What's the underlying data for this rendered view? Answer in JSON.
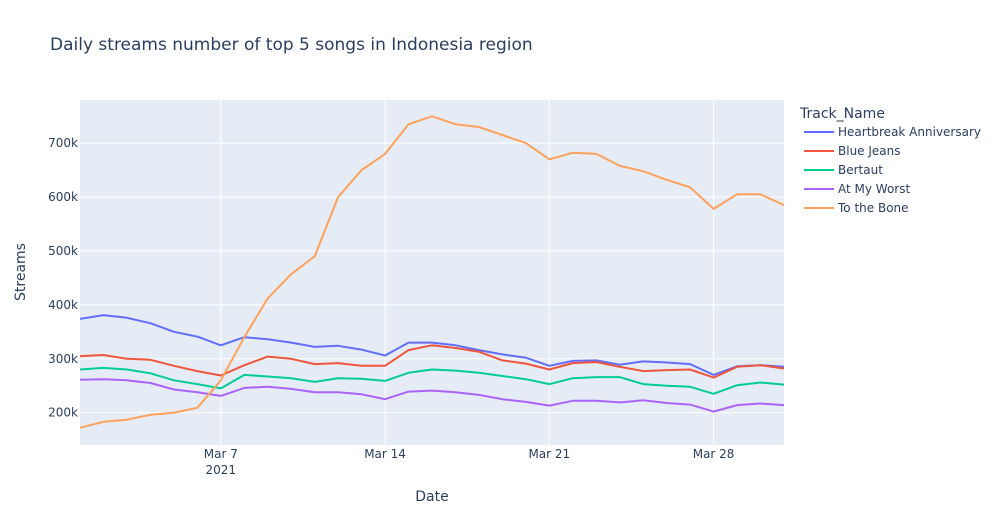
{
  "chart_data": {
    "type": "line",
    "title": "Daily streams number of top 5 songs in Indonesia region",
    "xlabel": "Date",
    "ylabel": "Streams",
    "legend_title": "Track_Name",
    "legend_position": "top-right",
    "grid": true,
    "x_start": "2021-03-01",
    "x_end": "2021-03-31",
    "x_ticks": [
      {
        "date": "2021-03-07",
        "label": "Mar 7",
        "sublabel": "2021"
      },
      {
        "date": "2021-03-14",
        "label": "Mar 14",
        "sublabel": ""
      },
      {
        "date": "2021-03-21",
        "label": "Mar 21",
        "sublabel": ""
      },
      {
        "date": "2021-03-28",
        "label": "Mar 28",
        "sublabel": ""
      }
    ],
    "ylim": [
      140000,
      780000
    ],
    "y_ticks": [
      {
        "value": 200000,
        "label": "200k"
      },
      {
        "value": 300000,
        "label": "300k"
      },
      {
        "value": 400000,
        "label": "400k"
      },
      {
        "value": 500000,
        "label": "500k"
      },
      {
        "value": 600000,
        "label": "600k"
      },
      {
        "value": 700000,
        "label": "700k"
      }
    ],
    "x": [
      "2021-03-01",
      "2021-03-02",
      "2021-03-03",
      "2021-03-04",
      "2021-03-05",
      "2021-03-06",
      "2021-03-07",
      "2021-03-08",
      "2021-03-09",
      "2021-03-10",
      "2021-03-11",
      "2021-03-12",
      "2021-03-13",
      "2021-03-14",
      "2021-03-15",
      "2021-03-16",
      "2021-03-17",
      "2021-03-18",
      "2021-03-19",
      "2021-03-20",
      "2021-03-21",
      "2021-03-22",
      "2021-03-23",
      "2021-03-24",
      "2021-03-25",
      "2021-03-26",
      "2021-03-27",
      "2021-03-28",
      "2021-03-29",
      "2021-03-30",
      "2021-03-31"
    ],
    "series": [
      {
        "name": "Heartbreak Anniversary",
        "color": "#636efa",
        "values": [
          374000,
          381000,
          376000,
          366000,
          350000,
          341000,
          325000,
          340000,
          336000,
          330000,
          322000,
          324000,
          317000,
          306000,
          330000,
          330000,
          325000,
          316000,
          308000,
          302000,
          287000,
          296000,
          297000,
          289000,
          295000,
          293000,
          290000,
          270000,
          286000,
          288000,
          285000
        ]
      },
      {
        "name": "Blue Jeans",
        "color": "#ef553b",
        "values": [
          305000,
          307000,
          300000,
          298000,
          287000,
          277000,
          269000,
          288000,
          304000,
          300000,
          290000,
          292000,
          287000,
          287000,
          316000,
          325000,
          320000,
          313000,
          297000,
          291000,
          280000,
          292000,
          294000,
          285000,
          277000,
          279000,
          280000,
          265000,
          285000,
          288000,
          282000
        ]
      },
      {
        "name": "Bertaut",
        "color": "#00cc96",
        "values": [
          280000,
          283000,
          280000,
          273000,
          260000,
          253000,
          245000,
          270000,
          267000,
          264000,
          257000,
          264000,
          263000,
          259000,
          274000,
          280000,
          278000,
          274000,
          268000,
          262000,
          253000,
          264000,
          266000,
          266000,
          253000,
          250000,
          248000,
          235000,
          251000,
          256000,
          252000
        ]
      },
      {
        "name": "At My Worst",
        "color": "#ab63fa",
        "values": [
          261000,
          262000,
          260000,
          255000,
          243000,
          238000,
          231000,
          246000,
          248000,
          244000,
          238000,
          238000,
          234000,
          225000,
          239000,
          241000,
          238000,
          233000,
          225000,
          220000,
          213000,
          222000,
          222000,
          219000,
          223000,
          218000,
          215000,
          202000,
          214000,
          217000,
          214000
        ]
      },
      {
        "name": "To the Bone",
        "color": "#ffa15a",
        "values": [
          172000,
          183000,
          187000,
          196000,
          200000,
          209000,
          260000,
          340000,
          412000,
          457000,
          490000,
          600000,
          650000,
          680000,
          735000,
          750000,
          735000,
          730000,
          715000,
          700000,
          670000,
          682000,
          680000,
          658000,
          648000,
          632000,
          618000,
          578000,
          605000,
          605000,
          585000
        ]
      }
    ]
  }
}
